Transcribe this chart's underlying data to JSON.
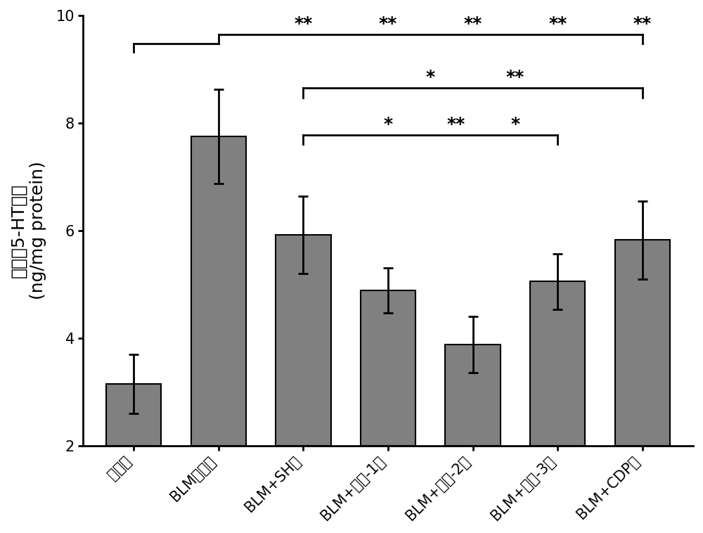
{
  "categories": [
    "对照组",
    "BLM模型组",
    "BLM+SH组",
    "BLM+复方-1组",
    "BLM+复方-2组",
    "BLM+复方-3组",
    "BLM+CDP组"
  ],
  "values": [
    3.15,
    7.75,
    5.92,
    4.88,
    3.88,
    5.05,
    5.82
  ],
  "errors": [
    0.55,
    0.88,
    0.72,
    0.42,
    0.52,
    0.52,
    0.72
  ],
  "bar_color": "#808080",
  "bar_edgecolor": "#000000",
  "ylabel_line1": "肺组睦5-HT含量",
  "ylabel_line2": "(ng/mg protein)",
  "ylim": [
    2,
    10
  ],
  "yticks": [
    2,
    4,
    6,
    8,
    10
  ],
  "figsize": [
    10.0,
    7.58
  ],
  "dpi": 100,
  "bar_width": 0.65,
  "spine_linewidth": 2.0,
  "tick_fontsize": 15,
  "label_fontsize": 18,
  "sig_fontsize": 18
}
